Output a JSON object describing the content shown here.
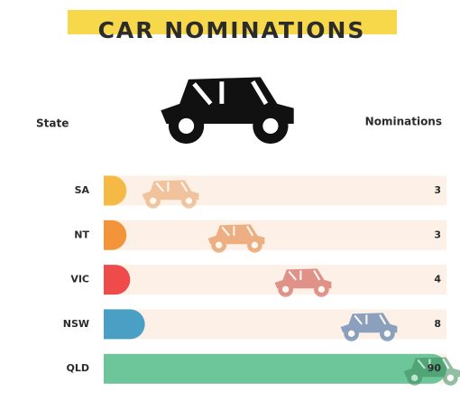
{
  "chart_data": {
    "type": "bar",
    "orientation": "horizontal",
    "title": "CAR NOMINATIONS",
    "category_label": "State",
    "value_label": "Nominations",
    "categories": [
      "SA",
      "NT",
      "VIC",
      "NSW",
      "QLD"
    ],
    "values": [
      3,
      3,
      4,
      8,
      90
    ],
    "colors": [
      "#f5b945",
      "#f2953a",
      "#ef4b4b",
      "#4a9fc4",
      "#6cc69a"
    ]
  }
}
